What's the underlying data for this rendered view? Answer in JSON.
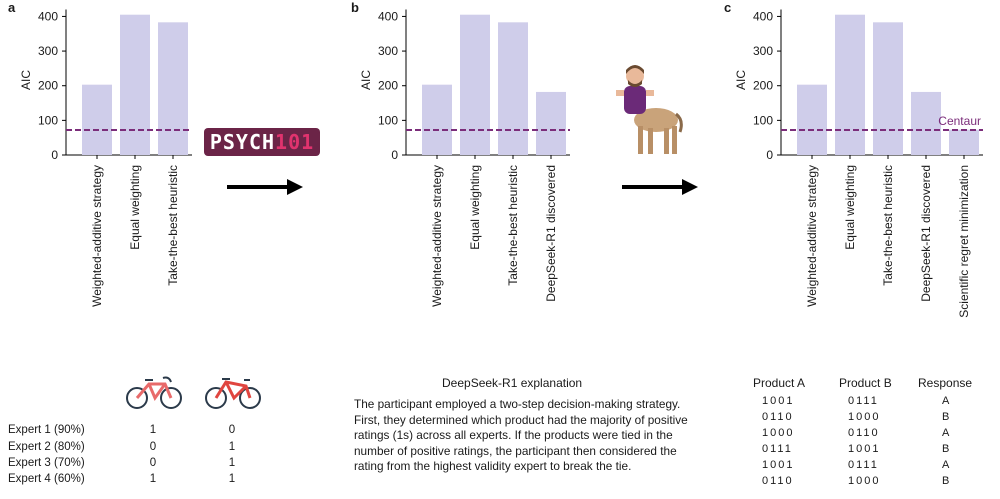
{
  "panels": {
    "a": "a",
    "b": "b",
    "c": "c"
  },
  "logo": {
    "prefix": "PSYCH",
    "number": "101"
  },
  "chart_data": [
    {
      "type": "bar",
      "ylabel": "AIC",
      "ylim": [
        0,
        420
      ],
      "yticks": [
        0,
        100,
        200,
        300,
        400
      ],
      "categories": [
        "Weighted-additive strategy",
        "Equal weighting",
        "Take-the-best heuristic"
      ],
      "values": [
        203,
        405,
        383
      ],
      "reference_line": {
        "value": 72,
        "label": ""
      },
      "bar_color": "#cfcdea",
      "line_color": "#7b2d7a"
    },
    {
      "type": "bar",
      "ylabel": "AIC",
      "ylim": [
        0,
        420
      ],
      "yticks": [
        0,
        100,
        200,
        300,
        400
      ],
      "categories": [
        "Weighted-additive strategy",
        "Equal weighting",
        "Take-the-best heuristic",
        "DeepSeek-R1 discovered"
      ],
      "values": [
        203,
        405,
        383,
        182
      ],
      "reference_line": {
        "value": 72,
        "label": ""
      },
      "bar_color": "#cfcdea",
      "line_color": "#7b2d7a"
    },
    {
      "type": "bar",
      "ylabel": "AIC",
      "ylim": [
        0,
        420
      ],
      "yticks": [
        0,
        100,
        200,
        300,
        400
      ],
      "categories": [
        "Weighted-additive strategy",
        "Equal weighting",
        "Take-the-best heuristic",
        "DeepSeek-R1 discovered",
        "Scientific regret minimization"
      ],
      "values": [
        203,
        405,
        383,
        182,
        73
      ],
      "reference_line": {
        "value": 72,
        "label": "Centaur"
      },
      "bar_color": "#cfcdea",
      "line_color": "#7b2d7a"
    }
  ],
  "experts": {
    "rows": [
      {
        "label": "Expert 1 (90%)",
        "a": "1",
        "b": "0"
      },
      {
        "label": "Expert 2 (80%)",
        "a": "0",
        "b": "1"
      },
      {
        "label": "Expert 3 (70%)",
        "a": "0",
        "b": "1"
      },
      {
        "label": "Expert 4 (60%)",
        "a": "1",
        "b": "1"
      }
    ],
    "bike_colors": [
      "#e86a6a",
      "#e0453f"
    ]
  },
  "explanation": {
    "title": "DeepSeek-R1 explanation",
    "text": "The participant employed a two-step decision-making strategy. First, they determined which product had the majority of positive ratings (1s) across all experts. If the products were tied in the number of positive ratings, the participant then considered the rating from the highest validity expert to break the tie."
  },
  "response_table": {
    "headers": [
      "Product A",
      "Product B",
      "Response"
    ],
    "rows": [
      [
        "1001",
        "0111",
        "A"
      ],
      [
        "0110",
        "1000",
        "B"
      ],
      [
        "1000",
        "0110",
        "A"
      ],
      [
        "0111",
        "1001",
        "B"
      ],
      [
        "1001",
        "0111",
        "A"
      ],
      [
        "0110",
        "1000",
        "B"
      ]
    ]
  }
}
